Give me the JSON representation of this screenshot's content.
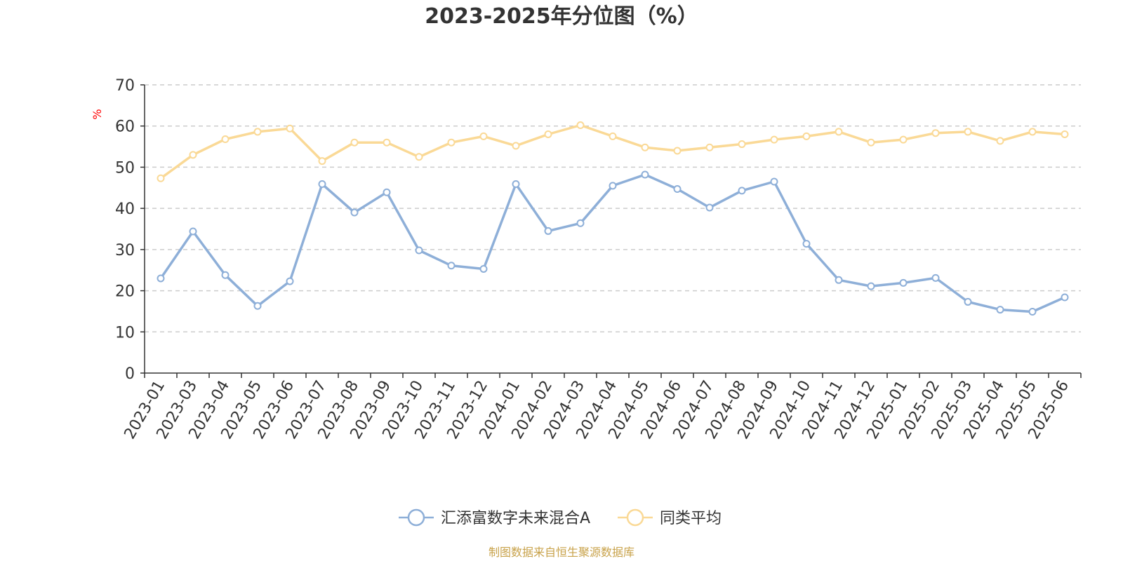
{
  "chart_data": {
    "type": "line",
    "title": "2023-2025年分位图（%）",
    "ylabel": "%",
    "ylim": [
      0,
      70
    ],
    "yticks": [
      0,
      10,
      20,
      30,
      40,
      50,
      60,
      70
    ],
    "grid": true,
    "legend_position": "bottom",
    "categories": [
      "2023-01",
      "2023-03",
      "2023-04",
      "2023-05",
      "2023-06",
      "2023-07",
      "2023-08",
      "2023-09",
      "2023-10",
      "2023-11",
      "2023-12",
      "2024-01",
      "2024-02",
      "2024-03",
      "2024-04",
      "2024-05",
      "2024-06",
      "2024-07",
      "2024-08",
      "2024-09",
      "2024-10",
      "2024-11",
      "2024-12",
      "2025-01",
      "2025-02",
      "2025-03",
      "2025-04",
      "2025-05",
      "2025-06"
    ],
    "series": [
      {
        "name": "汇添富数字未来混合A",
        "color": "#8eafd8",
        "values": [
          23.0,
          34.4,
          23.8,
          16.3,
          22.3,
          45.9,
          39.0,
          43.9,
          29.8,
          26.1,
          25.3,
          45.9,
          34.5,
          36.4,
          45.5,
          48.2,
          44.7,
          40.2,
          44.3,
          46.5,
          31.4,
          22.6,
          21.1,
          21.9,
          23.1,
          17.3,
          15.4,
          14.9,
          18.4
        ]
      },
      {
        "name": "同类平均",
        "color": "#fad996",
        "values": [
          47.3,
          53.0,
          56.8,
          58.6,
          59.4,
          51.5,
          56.0,
          56.0,
          52.5,
          56.0,
          57.5,
          55.2,
          58.0,
          60.2,
          57.5,
          54.8,
          54.0,
          54.8,
          55.6,
          56.7,
          57.5,
          58.6,
          56.0,
          56.7,
          58.3,
          58.6,
          56.4,
          58.6,
          58.0
        ]
      }
    ]
  },
  "colors": {
    "axis": "#333333",
    "grid": "#cccccc",
    "unit_label": "#ff0000",
    "source": "#c8a24a"
  },
  "source_text": "制图数据来自恒生聚源数据库"
}
